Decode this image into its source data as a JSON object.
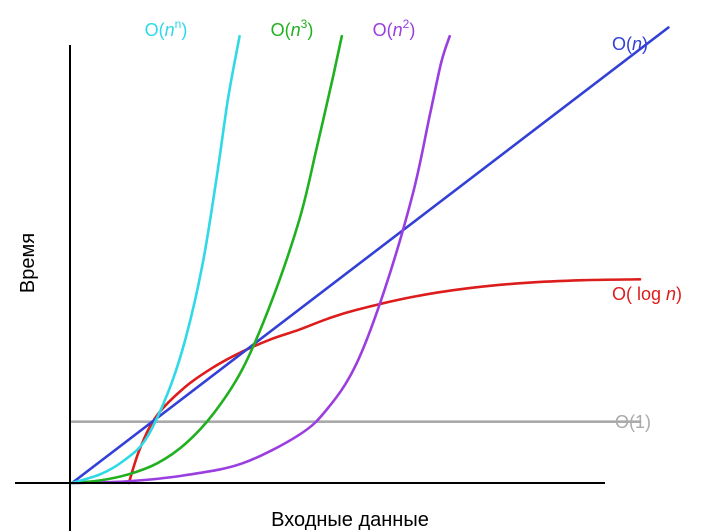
{
  "chart_data": {
    "type": "line",
    "title": "",
    "xlabel": "Входные данные",
    "ylabel": "Время",
    "grid": false,
    "legend": "labels at line ends",
    "xlim": [
      0,
      10
    ],
    "ylim": [
      0,
      10
    ],
    "series": [
      {
        "name": "O(1)",
        "label": {
          "prefix": "O(1)",
          "italic": "",
          "sup": "",
          "suffix": ""
        },
        "color": "#aaaaaa",
        "points": [
          [
            0,
            1.4
          ],
          [
            10,
            1.4
          ]
        ]
      },
      {
        "name": "O( log n)",
        "label": {
          "prefix": "O( log ",
          "italic": "n",
          "sup": "",
          "suffix": ")"
        },
        "color": "#dd1c1c",
        "points": [
          [
            1.0,
            0.0
          ],
          [
            1.2,
            0.8
          ],
          [
            1.5,
            1.55
          ],
          [
            2.0,
            2.2
          ],
          [
            2.5,
            2.65
          ],
          [
            3.0,
            3.0
          ],
          [
            3.5,
            3.28
          ],
          [
            4.0,
            3.5
          ],
          [
            4.5,
            3.75
          ],
          [
            5.0,
            3.95
          ],
          [
            6.0,
            4.25
          ],
          [
            7.0,
            4.45
          ],
          [
            8.0,
            4.57
          ],
          [
            9.0,
            4.63
          ],
          [
            10.0,
            4.65
          ]
        ]
      },
      {
        "name": "O(n)",
        "label": {
          "prefix": "O(",
          "italic": "n",
          "sup": "",
          "suffix": ")"
        },
        "color": "#3340d6",
        "points": [
          [
            0,
            0
          ],
          [
            10.5,
            10.4
          ]
        ]
      },
      {
        "name": "O(n2)",
        "label": {
          "prefix": "O(",
          "italic": "n",
          "sup": "2",
          "suffix": ")"
        },
        "color": "#9a3ee0",
        "points": [
          [
            0,
            0
          ],
          [
            1.0,
            0.04
          ],
          [
            2.0,
            0.18
          ],
          [
            3.0,
            0.45
          ],
          [
            4.0,
            1.1
          ],
          [
            4.5,
            1.7
          ],
          [
            5.0,
            2.7
          ],
          [
            5.5,
            4.4
          ],
          [
            6.0,
            6.6
          ],
          [
            6.3,
            8.4
          ],
          [
            6.5,
            9.6
          ],
          [
            6.65,
            10.2
          ]
        ]
      },
      {
        "name": "O(n3)",
        "label": {
          "prefix": "O(",
          "italic": "n",
          "sup": "3",
          "suffix": ")"
        },
        "color": "#20b020",
        "points": [
          [
            0,
            0
          ],
          [
            0.5,
            0.06
          ],
          [
            1.0,
            0.2
          ],
          [
            1.5,
            0.45
          ],
          [
            2.0,
            0.9
          ],
          [
            2.5,
            1.6
          ],
          [
            3.0,
            2.6
          ],
          [
            3.5,
            4.1
          ],
          [
            4.0,
            6.0
          ],
          [
            4.3,
            7.6
          ],
          [
            4.6,
            9.3
          ],
          [
            4.75,
            10.2
          ]
        ]
      },
      {
        "name": "O(nn)",
        "label": {
          "prefix": "O(",
          "italic": "n",
          "sup": "n",
          "suffix": ")"
        },
        "color": "#2fd9e6",
        "points": [
          [
            0,
            0
          ],
          [
            0.5,
            0.2
          ],
          [
            0.9,
            0.5
          ],
          [
            1.3,
            1.0
          ],
          [
            1.7,
            2.1
          ],
          [
            2.0,
            3.3
          ],
          [
            2.3,
            5.0
          ],
          [
            2.55,
            7.0
          ],
          [
            2.75,
            8.8
          ],
          [
            2.95,
            10.2
          ]
        ]
      }
    ]
  }
}
